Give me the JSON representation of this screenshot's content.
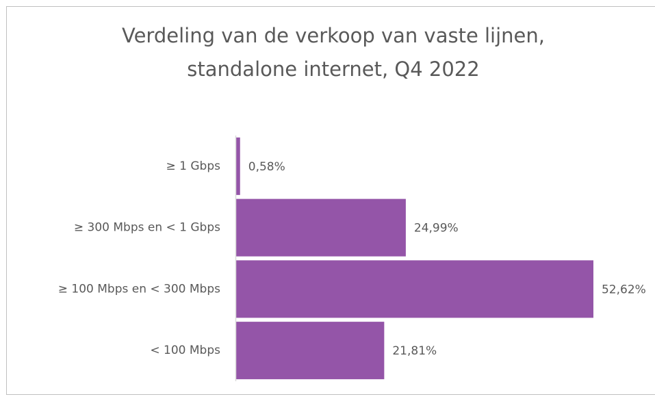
{
  "chart_data": {
    "type": "bar",
    "orientation": "horizontal",
    "title": [
      "Verdeling van de verkoop van vaste lijnen,",
      "standalone internet, Q4 2022"
    ],
    "categories": [
      "≥ 1 Gbps",
      "≥ 300 Mbps en < 1 Gbps",
      "≥ 100 Mbps en < 300 Mbps",
      "< 100 Mbps"
    ],
    "values": [
      0.58,
      24.99,
      52.62,
      21.81
    ],
    "value_labels": [
      "0,58%",
      "24,99%",
      "52,62%",
      "21,81%"
    ],
    "color": "#9455a8"
  }
}
